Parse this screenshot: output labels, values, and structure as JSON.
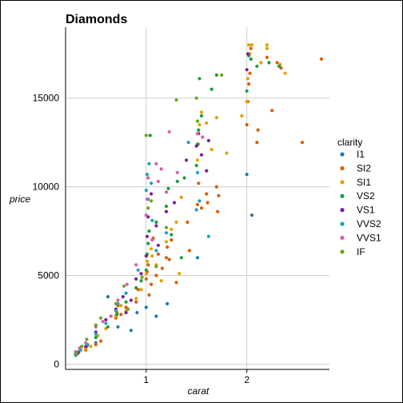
{
  "chart_data": {
    "type": "scatter",
    "title": "Diamonds",
    "xlabel": "carat",
    "ylabel": "price",
    "xlim": [
      0.2,
      2.82
    ],
    "ylim": [
      -300,
      19000
    ],
    "x_ticks": [
      1,
      2
    ],
    "y_ticks": [
      0,
      5000,
      10000,
      15000
    ],
    "y_tick_labels": [
      "0",
      "5000",
      "10000",
      "15000"
    ],
    "grid": true,
    "legend": {
      "title": "clarity",
      "position": "right"
    },
    "series": [
      {
        "name": "I1",
        "color": "#1f78b4",
        "points": [
          [
            0.33,
            650
          ],
          [
            0.5,
            1200
          ],
          [
            0.62,
            3800
          ],
          [
            0.85,
            1900
          ],
          [
            1.0,
            3200
          ],
          [
            1.1,
            2700
          ],
          [
            1.51,
            6000
          ],
          [
            2.0,
            10700
          ],
          [
            2.05,
            8400
          ],
          [
            0.91,
            2900
          ],
          [
            1.21,
            3400
          ],
          [
            0.72,
            2100
          ]
        ]
      },
      {
        "name": "SI2",
        "color": "#d95f02",
        "points": [
          [
            0.3,
            600
          ],
          [
            0.4,
            800
          ],
          [
            0.5,
            1100
          ],
          [
            0.55,
            1300
          ],
          [
            0.7,
            2600
          ],
          [
            0.71,
            2900
          ],
          [
            0.72,
            3300
          ],
          [
            0.75,
            2800
          ],
          [
            0.8,
            3200
          ],
          [
            0.9,
            3500
          ],
          [
            0.92,
            4200
          ],
          [
            1.0,
            4800
          ],
          [
            1.01,
            5200
          ],
          [
            1.02,
            5600
          ],
          [
            1.03,
            3900
          ],
          [
            1.05,
            4500
          ],
          [
            1.1,
            5000
          ],
          [
            1.12,
            6200
          ],
          [
            1.2,
            6000
          ],
          [
            1.21,
            6600
          ],
          [
            1.23,
            5900
          ],
          [
            1.25,
            7000
          ],
          [
            1.3,
            4600
          ],
          [
            1.51,
            9000
          ],
          [
            1.52,
            10200
          ],
          [
            1.55,
            8800
          ],
          [
            1.6,
            9600
          ],
          [
            1.61,
            9100
          ],
          [
            1.7,
            10000
          ],
          [
            1.71,
            8600
          ],
          [
            1.72,
            9500
          ],
          [
            2.0,
            13500
          ],
          [
            2.01,
            14800
          ],
          [
            2.02,
            15800
          ],
          [
            2.03,
            16400
          ],
          [
            2.04,
            17800
          ],
          [
            2.1,
            12500
          ],
          [
            2.11,
            13200
          ],
          [
            2.2,
            17300
          ],
          [
            2.25,
            14300
          ],
          [
            2.3,
            17000
          ],
          [
            2.34,
            16700
          ],
          [
            2.55,
            12500
          ],
          [
            2.74,
            17200
          ],
          [
            1.07,
            7100
          ],
          [
            1.16,
            5400
          ],
          [
            1.41,
            8000
          ],
          [
            1.43,
            6400
          ]
        ]
      },
      {
        "name": "SI1",
        "color": "#e69f00",
        "points": [
          [
            0.31,
            550
          ],
          [
            0.4,
            900
          ],
          [
            0.45,
            1000
          ],
          [
            0.52,
            1600
          ],
          [
            0.6,
            2000
          ],
          [
            0.7,
            2700
          ],
          [
            0.75,
            3300
          ],
          [
            0.8,
            3000
          ],
          [
            0.9,
            3700
          ],
          [
            0.95,
            4200
          ],
          [
            1.0,
            5100
          ],
          [
            1.01,
            5800
          ],
          [
            1.05,
            6500
          ],
          [
            1.1,
            5600
          ],
          [
            1.15,
            4700
          ],
          [
            1.2,
            6900
          ],
          [
            1.25,
            7600
          ],
          [
            1.3,
            8000
          ],
          [
            1.35,
            9400
          ],
          [
            1.51,
            11500
          ],
          [
            1.52,
            12400
          ],
          [
            1.53,
            13500
          ],
          [
            1.55,
            14200
          ],
          [
            1.6,
            13600
          ],
          [
            1.65,
            12100
          ],
          [
            1.7,
            13900
          ],
          [
            1.8,
            11900
          ],
          [
            1.95,
            14000
          ],
          [
            2.0,
            14800
          ],
          [
            2.01,
            16100
          ],
          [
            2.02,
            18000
          ],
          [
            2.03,
            17500
          ],
          [
            2.05,
            18000
          ],
          [
            2.14,
            17000
          ],
          [
            2.2,
            17800
          ],
          [
            2.2,
            18000
          ],
          [
            2.33,
            16900
          ],
          [
            2.38,
            16400
          ],
          [
            1.06,
            6100
          ],
          [
            1.33,
            5100
          ]
        ]
      },
      {
        "name": "VS2",
        "color": "#1b9e3a",
        "points": [
          [
            0.3,
            500
          ],
          [
            0.33,
            700
          ],
          [
            0.41,
            1000
          ],
          [
            0.5,
            1500
          ],
          [
            0.62,
            2100
          ],
          [
            0.71,
            2800
          ],
          [
            0.8,
            3500
          ],
          [
            0.9,
            4300
          ],
          [
            1.0,
            5300
          ],
          [
            1.01,
            6200
          ],
          [
            1.02,
            6800
          ],
          [
            1.03,
            7500
          ],
          [
            1.1,
            8000
          ],
          [
            1.2,
            8900
          ],
          [
            1.22,
            9900
          ],
          [
            1.25,
            7300
          ],
          [
            1.31,
            10300
          ],
          [
            1.38,
            10500
          ],
          [
            1.5,
            11200
          ],
          [
            1.51,
            12400
          ],
          [
            1.52,
            13200
          ],
          [
            1.55,
            14000
          ],
          [
            1.53,
            16100
          ],
          [
            1.65,
            15500
          ],
          [
            1.7,
            16300
          ],
          [
            2.0,
            15400
          ],
          [
            2.02,
            17400
          ],
          [
            2.04,
            17200
          ],
          [
            2.1,
            16800
          ],
          [
            2.22,
            17000
          ],
          [
            2.32,
            16800
          ],
          [
            1.04,
            12900
          ],
          [
            1.35,
            6000
          ],
          [
            0.95,
            4700
          ]
        ]
      },
      {
        "name": "VS1",
        "color": "#7b1fa2",
        "points": [
          [
            0.32,
            600
          ],
          [
            0.4,
            1000
          ],
          [
            0.5,
            1800
          ],
          [
            0.6,
            2500
          ],
          [
            0.7,
            3100
          ],
          [
            0.77,
            3800
          ],
          [
            0.8,
            2900
          ],
          [
            0.9,
            4800
          ],
          [
            0.95,
            5100
          ],
          [
            1.0,
            6100
          ],
          [
            1.01,
            7200
          ],
          [
            1.02,
            8300
          ],
          [
            1.05,
            9600
          ],
          [
            1.1,
            7800
          ],
          [
            1.2,
            8600
          ],
          [
            1.28,
            9100
          ],
          [
            1.4,
            11500
          ],
          [
            1.5,
            12300
          ],
          [
            1.52,
            13000
          ],
          [
            1.55,
            11800
          ],
          [
            1.6,
            10900
          ],
          [
            1.62,
            12600
          ],
          [
            2.0,
            16600
          ],
          [
            2.01,
            17500
          ],
          [
            1.12,
            6700
          ],
          [
            0.85,
            3600
          ]
        ]
      },
      {
        "name": "VVS2",
        "color": "#17a2c2",
        "points": [
          [
            0.3,
            550
          ],
          [
            0.35,
            800
          ],
          [
            0.42,
            1100
          ],
          [
            0.5,
            1700
          ],
          [
            0.6,
            2300
          ],
          [
            0.7,
            3000
          ],
          [
            0.72,
            3400
          ],
          [
            0.8,
            4000
          ],
          [
            1.0,
            9800
          ],
          [
            1.01,
            10700
          ],
          [
            1.02,
            9300
          ],
          [
            1.03,
            11300
          ],
          [
            1.05,
            10200
          ],
          [
            1.1,
            6400
          ],
          [
            1.2,
            7400
          ],
          [
            1.5,
            8700
          ],
          [
            1.53,
            9200
          ],
          [
            1.42,
            12500
          ],
          [
            1.51,
            10800
          ],
          [
            0.92,
            5300
          ],
          [
            1.06,
            8100
          ],
          [
            1.62,
            7200
          ]
        ]
      },
      {
        "name": "VVS1",
        "color": "#d55fa8",
        "points": [
          [
            0.3,
            700
          ],
          [
            0.34,
            900
          ],
          [
            0.4,
            1200
          ],
          [
            0.5,
            2100
          ],
          [
            0.57,
            2400
          ],
          [
            0.65,
            2700
          ],
          [
            0.72,
            3600
          ],
          [
            0.9,
            5600
          ],
          [
            1.0,
            8400
          ],
          [
            1.01,
            9300
          ],
          [
            1.02,
            10500
          ],
          [
            1.1,
            11300
          ],
          [
            1.12,
            10300
          ],
          [
            1.2,
            9700
          ],
          [
            1.23,
            13100
          ],
          [
            1.31,
            10800
          ],
          [
            1.51,
            13000
          ],
          [
            1.56,
            12800
          ],
          [
            0.81,
            4500
          ],
          [
            1.06,
            7000
          ],
          [
            1.15,
            11000
          ]
        ]
      },
      {
        "name": "IF",
        "color": "#66a61e",
        "points": [
          [
            0.31,
            600
          ],
          [
            0.36,
            1000
          ],
          [
            0.41,
            1400
          ],
          [
            0.5,
            2200
          ],
          [
            0.55,
            2600
          ],
          [
            0.7,
            3400
          ],
          [
            0.78,
            4400
          ],
          [
            0.82,
            3100
          ],
          [
            1.0,
            12900
          ],
          [
            1.02,
            8800
          ],
          [
            1.05,
            9200
          ],
          [
            1.1,
            5500
          ],
          [
            1.2,
            7700
          ],
          [
            1.3,
            14900
          ],
          [
            1.5,
            15000
          ],
          [
            1.51,
            13700
          ],
          [
            1.75,
            16300
          ],
          [
            0.96,
            4900
          ]
        ]
      }
    ]
  }
}
